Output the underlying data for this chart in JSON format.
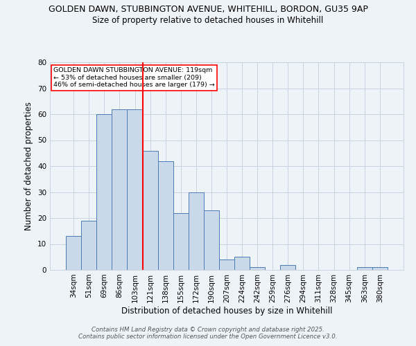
{
  "title_line1": "GOLDEN DAWN, STUBBINGTON AVENUE, WHITEHILL, BORDON, GU35 9AP",
  "title_line2": "Size of property relative to detached houses in Whitehill",
  "xlabel": "Distribution of detached houses by size in Whitehill",
  "ylabel": "Number of detached properties",
  "categories": [
    "34sqm",
    "51sqm",
    "69sqm",
    "86sqm",
    "103sqm",
    "121sqm",
    "138sqm",
    "155sqm",
    "172sqm",
    "190sqm",
    "207sqm",
    "224sqm",
    "242sqm",
    "259sqm",
    "276sqm",
    "294sqm",
    "311sqm",
    "328sqm",
    "345sqm",
    "363sqm",
    "380sqm"
  ],
  "values": [
    13,
    19,
    60,
    62,
    62,
    46,
    42,
    22,
    30,
    23,
    4,
    5,
    1,
    0,
    2,
    0,
    0,
    0,
    0,
    1,
    1
  ],
  "bar_color": "#c9d9ea",
  "bar_edge_color": "#4a7ab5",
  "grid_color": "#c8d4e0",
  "bg_color": "#eef3f8",
  "annotation_text": "GOLDEN DAWN STUBBINGTON AVENUE: 119sqm\n← 53% of detached houses are smaller (209)\n46% of semi-detached houses are larger (179) →",
  "annotation_box_color": "white",
  "annotation_box_edge": "red",
  "footer_line1": "Contains HM Land Registry data © Crown copyright and database right 2025.",
  "footer_line2": "Contains public sector information licensed under the Open Government Licence v3.0.",
  "ylim": [
    0,
    80
  ],
  "yticks": [
    0,
    10,
    20,
    30,
    40,
    50,
    60,
    70,
    80
  ],
  "red_line_x": 4.5
}
